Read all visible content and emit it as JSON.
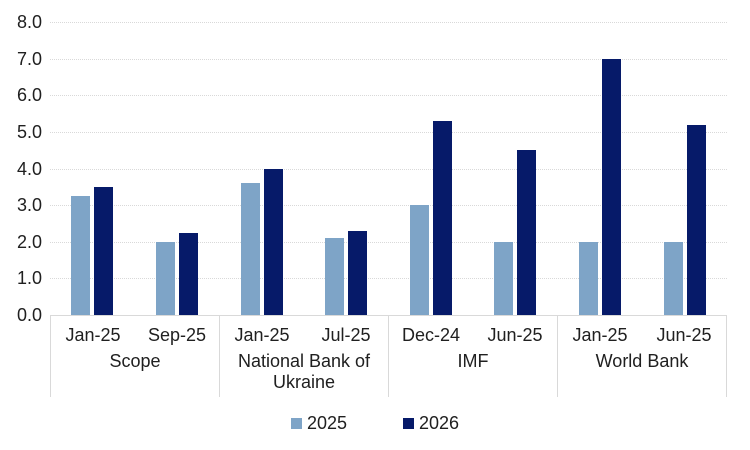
{
  "chart_data": {
    "type": "bar",
    "title": "",
    "grid": true,
    "legend_position": "bottom",
    "y_axis": {
      "min": 0,
      "max": 8,
      "step": 1,
      "tick_labels": [
        "0.0",
        "1.0",
        "2.0",
        "3.0",
        "4.0",
        "5.0",
        "6.0",
        "7.0",
        "8.0"
      ]
    },
    "groups": [
      {
        "label": "Scope",
        "subcategories": [
          "Jan-25",
          "Sep-25"
        ]
      },
      {
        "label": "National Bank of Ukraine",
        "subcategories": [
          "Jan-25",
          "Jul-25"
        ]
      },
      {
        "label": "IMF",
        "subcategories": [
          "Dec-24",
          "Jun-25"
        ]
      },
      {
        "label": "World Bank",
        "subcategories": [
          "Jan-25",
          "Jun-25"
        ]
      }
    ],
    "series": [
      {
        "name": "2025",
        "color": "#7EA4C7",
        "values": [
          3.25,
          2.0,
          3.6,
          2.1,
          3.0,
          2.0,
          2.0,
          2.0
        ]
      },
      {
        "name": "2026",
        "color": "#061A69",
        "values": [
          3.5,
          2.25,
          4.0,
          2.3,
          5.3,
          4.5,
          7.0,
          5.2
        ]
      }
    ],
    "colors": {
      "gridline": "#d9d9d9",
      "axis_line": "#d9d9d9",
      "text": "#202020"
    }
  }
}
